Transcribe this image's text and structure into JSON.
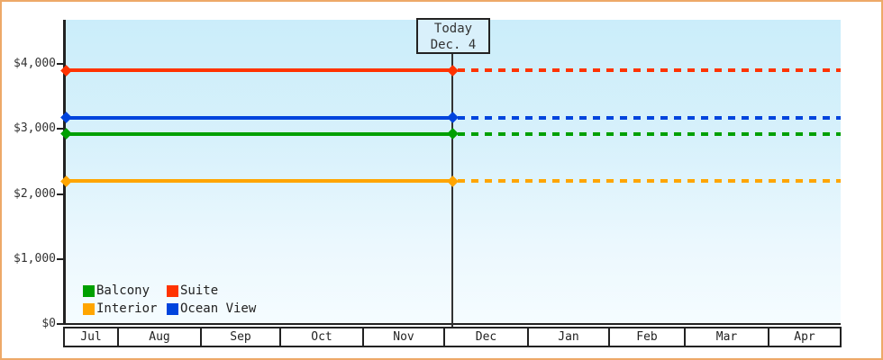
{
  "window": {
    "background_color": "#ffffff",
    "frame_border_color": "#eda968"
  },
  "chart_data": {
    "type": "line",
    "title": "",
    "description": "Price history chart for cruise cabin categories; each category is a flat horizontal price line drawn solid from July through today (Dec. 4) and dotted as a projection afterward",
    "x_axis": {
      "label": "",
      "tick_labels": [
        "Jul",
        "Aug",
        "Sep",
        "Oct",
        "Nov",
        "Dec",
        "Jan",
        "Feb",
        "Mar",
        "Apr"
      ]
    },
    "y_axis": {
      "label": "",
      "unit": "USD",
      "ticks": [
        {
          "label": "$0",
          "value": 0
        },
        {
          "label": "$1,000",
          "value": 1000
        },
        {
          "label": "$2,000",
          "value": 2000
        },
        {
          "label": "$3,000",
          "value": 3000
        },
        {
          "label": "$4,000",
          "value": 4000
        }
      ],
      "range": [
        0,
        4675
      ],
      "grid": false
    },
    "today_marker": {
      "line1": "Today",
      "line2": "Dec. 4",
      "month": "Dec",
      "day": 4,
      "line_color": "#333333",
      "box_fill": "#d9f0fb"
    },
    "series": [
      {
        "name": "Suite",
        "color": "#ff3300",
        "value": 3900,
        "style_before_today": "solid",
        "style_after_today": "dashed"
      },
      {
        "name": "Ocean View",
        "color": "#0044dd",
        "value": 3175,
        "style_before_today": "solid",
        "style_after_today": "dashed"
      },
      {
        "name": "Balcony",
        "color": "#00a000",
        "value": 2925,
        "style_before_today": "solid",
        "style_after_today": "dashed"
      },
      {
        "name": "Interior",
        "color": "#ffa500",
        "value": 2200,
        "style_before_today": "solid",
        "style_after_today": "dashed"
      }
    ],
    "legend": {
      "position": "bottom-left-inside-plot",
      "items": [
        "Balcony",
        "Suite",
        "Interior",
        "Ocean View"
      ]
    }
  }
}
